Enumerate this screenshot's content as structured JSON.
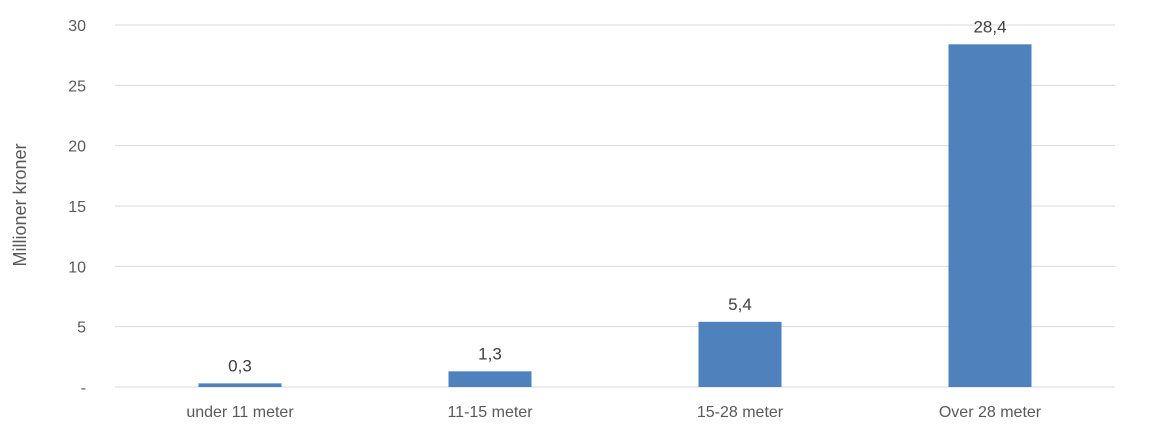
{
  "chart_data": {
    "type": "bar",
    "categories": [
      "under 11 meter",
      "11-15 meter",
      "15-28 meter",
      "Over 28 meter"
    ],
    "values": [
      0.3,
      1.3,
      5.4,
      28.4
    ],
    "data_labels": [
      "0,3",
      "1,3",
      "5,4",
      "28,4"
    ],
    "title": "",
    "xlabel": "",
    "ylabel": "Millioner kroner",
    "ylim": [
      0,
      30
    ],
    "yticks": [
      0,
      5,
      10,
      15,
      20,
      25,
      30
    ],
    "ytick_labels": [
      "-",
      "5",
      "10",
      "15",
      "20",
      "25",
      "30"
    ],
    "grid": true,
    "legend": "none",
    "bar_color": "#4f81bd",
    "grid_color": "#d9d9d9"
  }
}
